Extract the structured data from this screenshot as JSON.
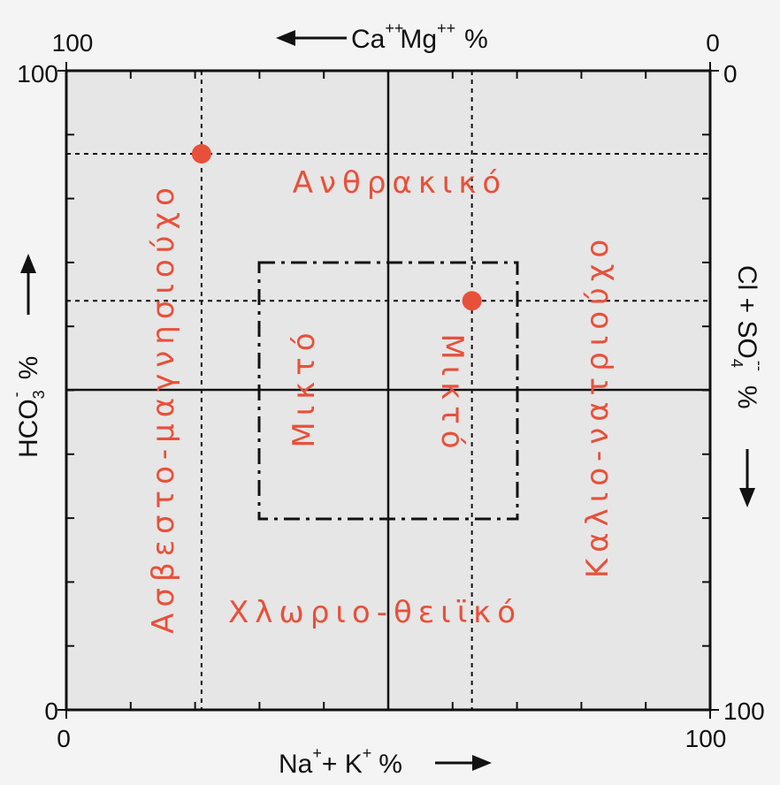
{
  "colors": {
    "plot_background": "#e6e6e6",
    "frame": "#111111",
    "region_label": "#e8503a",
    "sample_point": "#e8503a"
  },
  "top_axis": {
    "left_value": "100",
    "right_value": "0",
    "label_ca": "Ca",
    "label_ca_sup": "++",
    "label_mg": "Mg",
    "label_mg_sup": "++",
    "label_unit": "%"
  },
  "bottom_axis": {
    "left_value": "0",
    "right_value": "100",
    "label_na": "Na",
    "label_na_sup": "+",
    "label_k": "+ K",
    "label_k_sup": "+",
    "label_unit": "%"
  },
  "left_axis": {
    "top_value": "100",
    "bottom_value": "0",
    "label_main": "HCO",
    "label_sub": "3",
    "label_sup": "-",
    "label_unit": "%"
  },
  "right_axis": {
    "top_value": "0",
    "bottom_value": "100",
    "label_main": "Cl + SO",
    "label_sub": "4",
    "label_sup": "--",
    "label_unit": "%"
  },
  "regions": {
    "carbonate": "Ανθρακικό",
    "chloride_sulfate": "Χλωριο-θειϊκό",
    "calcium_magnesium": "Ασβεστο-μαγνησιούχο",
    "sodium_potassium": "Καλιο-νατριούχο",
    "mixed_left": "Μικτό",
    "mixed_right": "Μικτό"
  },
  "samples": [
    {
      "na_k_percent": 21,
      "hco3_percent": 87
    },
    {
      "na_k_percent": 63,
      "hco3_percent": 64
    }
  ],
  "reference_lines": {
    "center_na_k": 50,
    "center_hco3": 50,
    "mixed_zone": {
      "na_k_min": 30,
      "na_k_max": 70,
      "hco3_min": 30,
      "hco3_max": 70
    }
  }
}
